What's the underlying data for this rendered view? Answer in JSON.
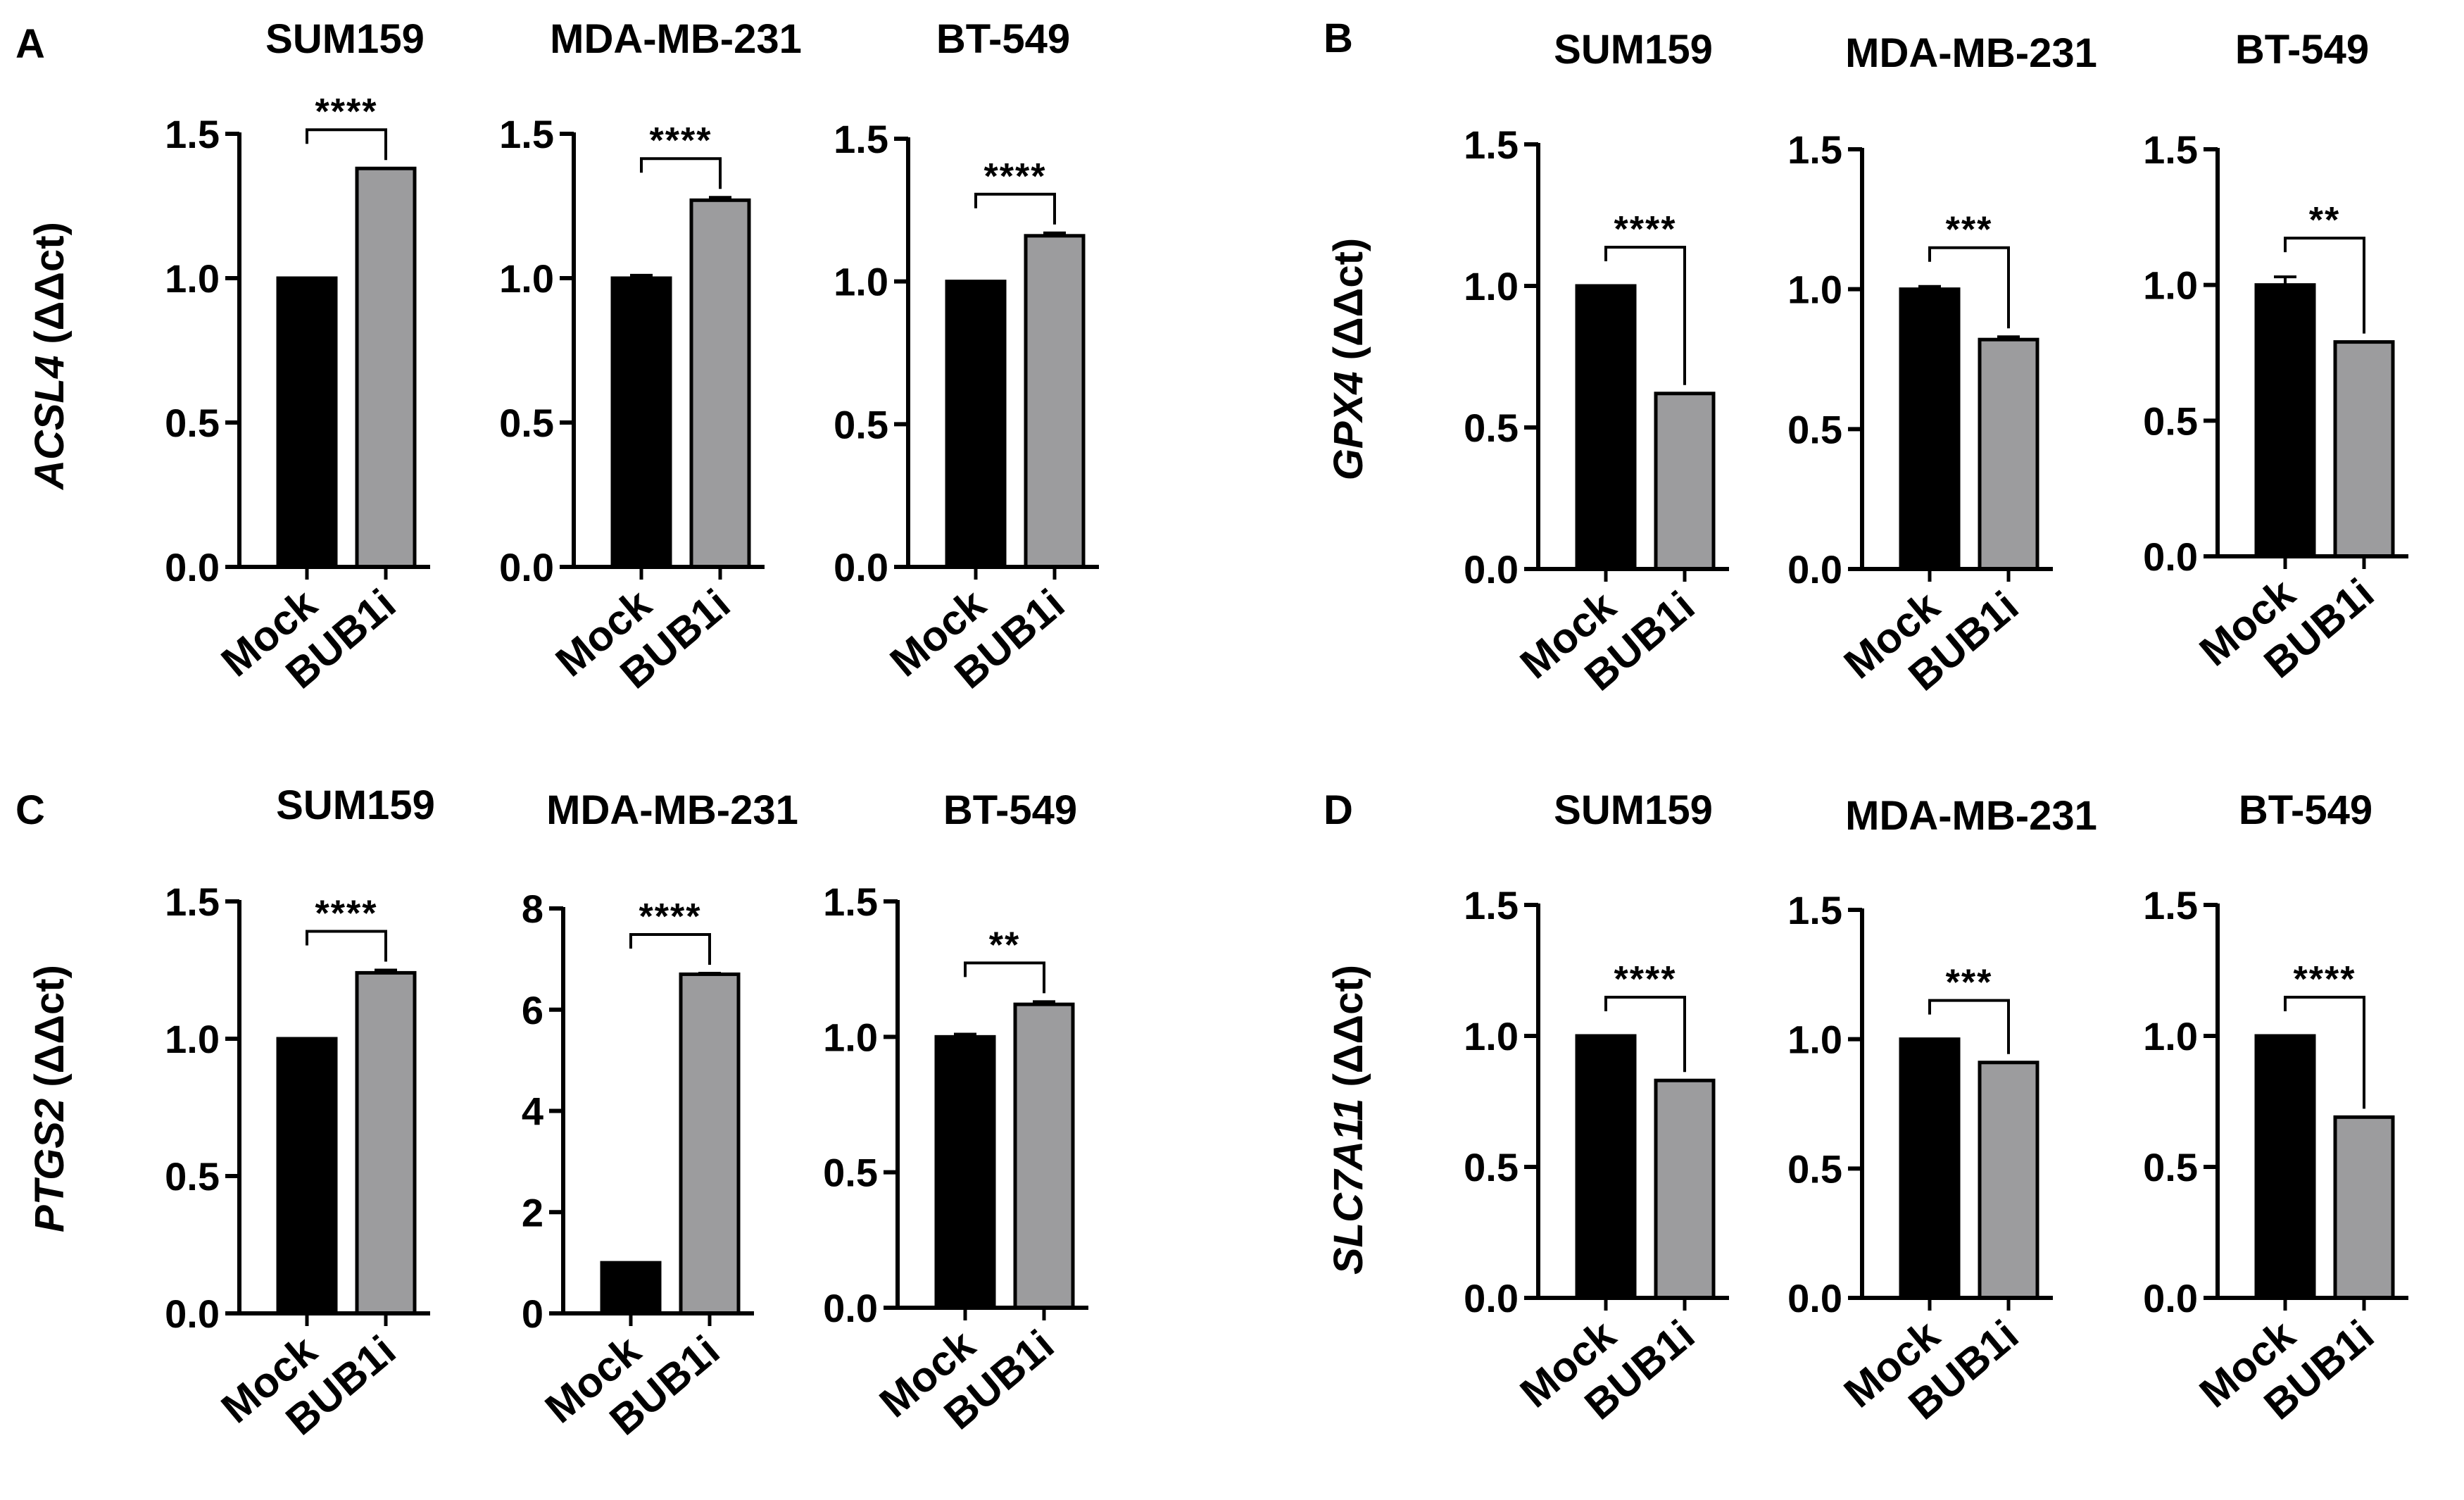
{
  "figure": {
    "panels": [
      {
        "letter": "A",
        "gene": "ACSL4",
        "unit": " (ΔΔct)"
      },
      {
        "letter": "B",
        "gene": "GPX4",
        "unit": " (ΔΔct)"
      },
      {
        "letter": "C",
        "gene": "PTGS2",
        "unit": " (ΔΔct)"
      },
      {
        "letter": "D",
        "gene": "SLC7A11",
        "unit": " (ΔΔct)"
      }
    ]
  },
  "chart_data": [
    {
      "type": "bar",
      "panel": "A",
      "title": "SUM159",
      "ylabel": "ACSL4 (ΔΔct)",
      "categories": [
        "Mock",
        "BUB1i"
      ],
      "values": [
        1.0,
        1.38
      ],
      "errors": [
        0.0,
        0.0
      ],
      "colors": [
        "#000000",
        "#9c9c9e"
      ],
      "ylim": [
        0,
        1.5
      ],
      "yticks": [
        "0.0",
        "0.5",
        "1.0",
        "1.5"
      ],
      "significance": "****"
    },
    {
      "type": "bar",
      "panel": "A",
      "title": "MDA-MB-231",
      "ylabel": "",
      "categories": [
        "Mock",
        "BUB1i"
      ],
      "values": [
        1.0,
        1.27
      ],
      "errors": [
        0.01,
        0.01
      ],
      "colors": [
        "#000000",
        "#9c9c9e"
      ],
      "ylim": [
        0,
        1.5
      ],
      "yticks": [
        "0.0",
        "0.5",
        "1.0",
        "1.5"
      ],
      "significance": "****"
    },
    {
      "type": "bar",
      "panel": "A",
      "title": "BT-549",
      "ylabel": "",
      "categories": [
        "Mock",
        "BUB1i"
      ],
      "values": [
        1.0,
        1.16
      ],
      "errors": [
        0.0,
        0.01
      ],
      "colors": [
        "#000000",
        "#9c9c9e"
      ],
      "ylim": [
        0,
        1.5
      ],
      "yticks": [
        "0.0",
        "0.5",
        "1.0",
        "1.5"
      ],
      "significance": "****"
    },
    {
      "type": "bar",
      "panel": "B",
      "title": "SUM159",
      "ylabel": "GPX4 (ΔΔct)",
      "categories": [
        "Mock",
        "BUB1i"
      ],
      "values": [
        1.0,
        0.62
      ],
      "errors": [
        0.0,
        0.0
      ],
      "colors": [
        "#000000",
        "#9c9c9e"
      ],
      "ylim": [
        0,
        1.5
      ],
      "yticks": [
        "0.0",
        "0.5",
        "1.0",
        "1.5"
      ],
      "significance": "****"
    },
    {
      "type": "bar",
      "panel": "B",
      "title": "MDA-MB-231",
      "ylabel": "",
      "categories": [
        "Mock",
        "BUB1i"
      ],
      "values": [
        1.0,
        0.82
      ],
      "errors": [
        0.01,
        0.01
      ],
      "colors": [
        "#000000",
        "#9c9c9e"
      ],
      "ylim": [
        0,
        1.5
      ],
      "yticks": [
        "0.0",
        "0.5",
        "1.0",
        "1.5"
      ],
      "significance": "***"
    },
    {
      "type": "bar",
      "panel": "B",
      "title": "BT-549",
      "ylabel": "",
      "categories": [
        "Mock",
        "BUB1i"
      ],
      "values": [
        1.0,
        0.79
      ],
      "errors": [
        0.03,
        0.0
      ],
      "colors": [
        "#000000",
        "#9c9c9e"
      ],
      "ylim": [
        0,
        1.5
      ],
      "yticks": [
        "0.0",
        "0.5",
        "1.0",
        "1.5"
      ],
      "significance": "**"
    },
    {
      "type": "bar",
      "panel": "C",
      "title": "SUM159",
      "ylabel": "PTGS2 (ΔΔct)",
      "categories": [
        "Mock",
        "BUB1i"
      ],
      "values": [
        1.0,
        1.24
      ],
      "errors": [
        0.0,
        0.01
      ],
      "colors": [
        "#000000",
        "#9c9c9e"
      ],
      "ylim": [
        0,
        1.5
      ],
      "yticks": [
        "0.0",
        "0.5",
        "1.0",
        "1.5"
      ],
      "significance": "****"
    },
    {
      "type": "bar",
      "panel": "C",
      "title": "MDA-MB-231",
      "ylabel": "",
      "categories": [
        "Mock",
        "BUB1i"
      ],
      "values": [
        1.0,
        6.7
      ],
      "errors": [
        0.0,
        0.02
      ],
      "colors": [
        "#000000",
        "#9c9c9e"
      ],
      "ylim": [
        0,
        8
      ],
      "yticks": [
        "0",
        "2",
        "4",
        "6",
        "8"
      ],
      "significance": "****"
    },
    {
      "type": "bar",
      "panel": "C",
      "title": "BT-549",
      "ylabel": "",
      "categories": [
        "Mock",
        "BUB1i"
      ],
      "values": [
        1.0,
        1.12
      ],
      "errors": [
        0.01,
        0.01
      ],
      "colors": [
        "#000000",
        "#9c9c9e"
      ],
      "ylim": [
        0,
        1.5
      ],
      "yticks": [
        "0.0",
        "0.5",
        "1.0",
        "1.5"
      ],
      "significance": "**"
    },
    {
      "type": "bar",
      "panel": "D",
      "title": "SUM159",
      "ylabel": "SLC7A11 (ΔΔct)",
      "categories": [
        "Mock",
        "BUB1i"
      ],
      "values": [
        1.0,
        0.83
      ],
      "errors": [
        0.0,
        0.0
      ],
      "colors": [
        "#000000",
        "#9c9c9e"
      ],
      "ylim": [
        0,
        1.5
      ],
      "yticks": [
        "0.0",
        "0.5",
        "1.0",
        "1.5"
      ],
      "significance": "****"
    },
    {
      "type": "bar",
      "panel": "D",
      "title": "MDA-MB-231",
      "ylabel": "",
      "categories": [
        "Mock",
        "BUB1i"
      ],
      "values": [
        1.0,
        0.91
      ],
      "errors": [
        0.0,
        0.0
      ],
      "colors": [
        "#000000",
        "#9c9c9e"
      ],
      "ylim": [
        0,
        1.5
      ],
      "yticks": [
        "0.0",
        "0.5",
        "1.0",
        "1.5"
      ],
      "significance": "***"
    },
    {
      "type": "bar",
      "panel": "D",
      "title": "BT-549",
      "ylabel": "",
      "categories": [
        "Mock",
        "BUB1i"
      ],
      "values": [
        1.0,
        0.69
      ],
      "errors": [
        0.0,
        0.0
      ],
      "colors": [
        "#000000",
        "#9c9c9e"
      ],
      "ylim": [
        0,
        1.5
      ],
      "yticks": [
        "0.0",
        "0.5",
        "1.0",
        "1.5"
      ],
      "significance": "****"
    }
  ]
}
